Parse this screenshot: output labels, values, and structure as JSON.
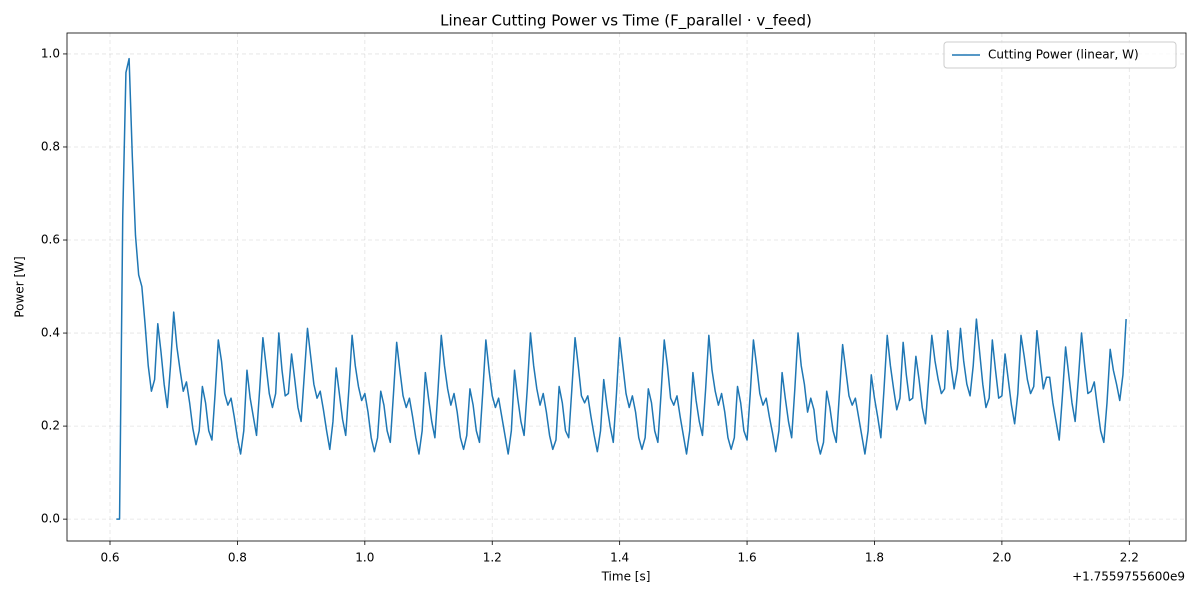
{
  "chart_data": {
    "type": "line",
    "title": "Linear Cutting Power vs Time (F_parallel · v_feed)",
    "xlabel": "Time [s]",
    "ylabel": "Power [W]",
    "x_offset_label": "+1.7559755600e9",
    "xlim": [
      0.5325,
      2.289
    ],
    "ylim": [
      -0.047,
      1.045
    ],
    "xticks": [
      0.6,
      0.8,
      {
        "value": 1.0,
        "label": "1.0"
      },
      1.2,
      1.4,
      1.6,
      1.8,
      {
        "value": 2.0,
        "label": "2.0"
      },
      2.2
    ],
    "yticks": [
      {
        "value": 0.0,
        "label": "0.0"
      },
      0.2,
      0.4,
      0.6,
      0.8,
      {
        "value": 1.0,
        "label": "1.0"
      }
    ],
    "grid": true,
    "legend": "upper right",
    "x": [
      0.61,
      0.615,
      0.62,
      0.625,
      0.63,
      0.635,
      0.64,
      0.645,
      0.65,
      0.655,
      0.66,
      0.665,
      0.67,
      0.675,
      0.68,
      0.685,
      0.69,
      0.695,
      0.7,
      0.705,
      0.71,
      0.715,
      0.72,
      0.725,
      0.73,
      0.735,
      0.74,
      0.745,
      0.75,
      0.755,
      0.76,
      0.765,
      0.77,
      0.775,
      0.78,
      0.785,
      0.79,
      0.795,
      0.8,
      0.805,
      0.81,
      0.815,
      0.82,
      0.825,
      0.83,
      0.835,
      0.84,
      0.845,
      0.85,
      0.855,
      0.86,
      0.865,
      0.87,
      0.875,
      0.88,
      0.885,
      0.89,
      0.895,
      0.9,
      0.905,
      0.91,
      0.915,
      0.92,
      0.925,
      0.93,
      0.935,
      0.94,
      0.945,
      0.95,
      0.955,
      0.96,
      0.965,
      0.97,
      0.975,
      0.98,
      0.985,
      0.99,
      0.995,
      1.0,
      1.005,
      1.01,
      1.015,
      1.02,
      1.025,
      1.03,
      1.035,
      1.04,
      1.045,
      1.05,
      1.055,
      1.06,
      1.065,
      1.07,
      1.075,
      1.08,
      1.085,
      1.09,
      1.095,
      1.1,
      1.105,
      1.11,
      1.115,
      1.12,
      1.125,
      1.13,
      1.135,
      1.14,
      1.145,
      1.15,
      1.155,
      1.16,
      1.165,
      1.17,
      1.175,
      1.18,
      1.185,
      1.19,
      1.195,
      1.2,
      1.205,
      1.21,
      1.215,
      1.22,
      1.225,
      1.23,
      1.235,
      1.24,
      1.245,
      1.25,
      1.255,
      1.26,
      1.265,
      1.27,
      1.275,
      1.28,
      1.285,
      1.29,
      1.295,
      1.3,
      1.305,
      1.31,
      1.315,
      1.32,
      1.325,
      1.33,
      1.335,
      1.34,
      1.345,
      1.35,
      1.355,
      1.36,
      1.365,
      1.37,
      1.375,
      1.38,
      1.385,
      1.39,
      1.395,
      1.4,
      1.405,
      1.41,
      1.415,
      1.42,
      1.425,
      1.43,
      1.435,
      1.44,
      1.445,
      1.45,
      1.455,
      1.46,
      1.465,
      1.47,
      1.475,
      1.48,
      1.485,
      1.49,
      1.495,
      1.5,
      1.505,
      1.51,
      1.515,
      1.52,
      1.525,
      1.53,
      1.535,
      1.54,
      1.545,
      1.55,
      1.555,
      1.56,
      1.565,
      1.57,
      1.575,
      1.58,
      1.585,
      1.59,
      1.595,
      1.6,
      1.605,
      1.61,
      1.615,
      1.62,
      1.625,
      1.63,
      1.635,
      1.64,
      1.645,
      1.65,
      1.655,
      1.66,
      1.665,
      1.67,
      1.675,
      1.68,
      1.685,
      1.69,
      1.695,
      1.7,
      1.705,
      1.71,
      1.715,
      1.72,
      1.725,
      1.73,
      1.735,
      1.74,
      1.745,
      1.75,
      1.755,
      1.76,
      1.765,
      1.77,
      1.775,
      1.78,
      1.785,
      1.79,
      1.795,
      1.8,
      1.805,
      1.81,
      1.815,
      1.82,
      1.825,
      1.83,
      1.835,
      1.84,
      1.845,
      1.85,
      1.855,
      1.86,
      1.865,
      1.87,
      1.875,
      1.88,
      1.885,
      1.89,
      1.895,
      1.9,
      1.905,
      1.91,
      1.915,
      1.92,
      1.925,
      1.93,
      1.935,
      1.94,
      1.945,
      1.95,
      1.955,
      1.96,
      1.965,
      1.97,
      1.975,
      1.98,
      1.985,
      1.99,
      1.995,
      2.0,
      2.005,
      2.01,
      2.015,
      2.02,
      2.025,
      2.03,
      2.035,
      2.04,
      2.045,
      2.05,
      2.055,
      2.06,
      2.065,
      2.07,
      2.075,
      2.08,
      2.085,
      2.09,
      2.095,
      2.1,
      2.105,
      2.11,
      2.115,
      2.12,
      2.125,
      2.13,
      2.135,
      2.14,
      2.145,
      2.15,
      2.155,
      2.16,
      2.165,
      2.17,
      2.175,
      2.18,
      2.185,
      2.19,
      2.195
    ],
    "series": [
      {
        "name": "Cutting Power (linear, W)",
        "color": "#1f77b4",
        "values": [
          0.0,
          0.0,
          0.65,
          0.96,
          0.99,
          0.78,
          0.61,
          0.525,
          0.5,
          0.42,
          0.33,
          0.275,
          0.3,
          0.42,
          0.36,
          0.29,
          0.24,
          0.33,
          0.445,
          0.37,
          0.32,
          0.275,
          0.295,
          0.25,
          0.195,
          0.16,
          0.19,
          0.285,
          0.25,
          0.19,
          0.17,
          0.27,
          0.385,
          0.34,
          0.27,
          0.245,
          0.26,
          0.22,
          0.175,
          0.14,
          0.19,
          0.32,
          0.26,
          0.22,
          0.18,
          0.28,
          0.39,
          0.33,
          0.27,
          0.24,
          0.27,
          0.4,
          0.32,
          0.265,
          0.27,
          0.355,
          0.3,
          0.24,
          0.21,
          0.31,
          0.41,
          0.35,
          0.29,
          0.26,
          0.275,
          0.235,
          0.19,
          0.15,
          0.21,
          0.325,
          0.27,
          0.215,
          0.18,
          0.28,
          0.395,
          0.33,
          0.285,
          0.255,
          0.27,
          0.23,
          0.175,
          0.145,
          0.175,
          0.275,
          0.245,
          0.19,
          0.165,
          0.27,
          0.38,
          0.32,
          0.265,
          0.24,
          0.26,
          0.22,
          0.175,
          0.14,
          0.19,
          0.315,
          0.26,
          0.21,
          0.175,
          0.28,
          0.395,
          0.33,
          0.28,
          0.245,
          0.27,
          0.23,
          0.175,
          0.15,
          0.18,
          0.28,
          0.245,
          0.19,
          0.165,
          0.27,
          0.385,
          0.32,
          0.265,
          0.24,
          0.26,
          0.22,
          0.18,
          0.14,
          0.19,
          0.32,
          0.26,
          0.21,
          0.18,
          0.28,
          0.4,
          0.33,
          0.28,
          0.245,
          0.27,
          0.23,
          0.18,
          0.15,
          0.17,
          0.285,
          0.25,
          0.19,
          0.175,
          0.28,
          0.39,
          0.33,
          0.265,
          0.25,
          0.265,
          0.22,
          0.18,
          0.145,
          0.19,
          0.3,
          0.245,
          0.2,
          0.165,
          0.27,
          0.39,
          0.33,
          0.27,
          0.24,
          0.265,
          0.23,
          0.175,
          0.15,
          0.175,
          0.28,
          0.25,
          0.19,
          0.165,
          0.27,
          0.385,
          0.33,
          0.26,
          0.245,
          0.265,
          0.22,
          0.18,
          0.14,
          0.19,
          0.315,
          0.255,
          0.21,
          0.18,
          0.28,
          0.395,
          0.32,
          0.275,
          0.245,
          0.27,
          0.23,
          0.175,
          0.15,
          0.175,
          0.285,
          0.25,
          0.19,
          0.17,
          0.27,
          0.385,
          0.33,
          0.27,
          0.245,
          0.26,
          0.22,
          0.185,
          0.145,
          0.19,
          0.315,
          0.26,
          0.21,
          0.175,
          0.28,
          0.4,
          0.33,
          0.29,
          0.23,
          0.26,
          0.235,
          0.17,
          0.14,
          0.165,
          0.275,
          0.24,
          0.19,
          0.165,
          0.27,
          0.375,
          0.32,
          0.265,
          0.245,
          0.26,
          0.22,
          0.18,
          0.14,
          0.19,
          0.31,
          0.26,
          0.22,
          0.175,
          0.28,
          0.395,
          0.33,
          0.28,
          0.235,
          0.26,
          0.38,
          0.31,
          0.255,
          0.26,
          0.35,
          0.3,
          0.24,
          0.205,
          0.3,
          0.395,
          0.34,
          0.3,
          0.27,
          0.28,
          0.405,
          0.33,
          0.28,
          0.32,
          0.41,
          0.34,
          0.29,
          0.265,
          0.33,
          0.43,
          0.36,
          0.29,
          0.24,
          0.26,
          0.385,
          0.32,
          0.26,
          0.265,
          0.355,
          0.3,
          0.245,
          0.205,
          0.27,
          0.395,
          0.35,
          0.3,
          0.27,
          0.285,
          0.405,
          0.34,
          0.28,
          0.305,
          0.305,
          0.25,
          0.21,
          0.17,
          0.265,
          0.37,
          0.31,
          0.25,
          0.21,
          0.3,
          0.4,
          0.33,
          0.27,
          0.275,
          0.295,
          0.24,
          0.19,
          0.165,
          0.25,
          0.365,
          0.32,
          0.29,
          0.255,
          0.31,
          0.43
        ]
      }
    ]
  }
}
